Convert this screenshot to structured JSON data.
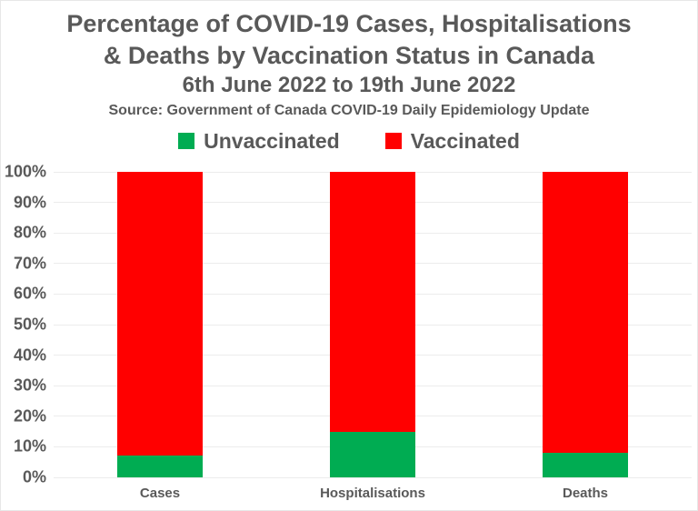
{
  "title": {
    "line1": "Percentage of COVID-19 Cases, Hospitalisations",
    "line2": "& Deaths by Vaccination Status in Canada",
    "subtitle": "6th June 2022 to 19th June 2022",
    "source": "Source: Government of Canada COVID-19 Daily Epidemiology Update"
  },
  "colors": {
    "text": "#595959",
    "gridline": "#ececec",
    "border": "#e7e7e7",
    "unvaccinated_green": "#00AC52",
    "vaccinated_red": "#FF0000",
    "background": "#ffffff"
  },
  "chart_data": {
    "type": "bar",
    "stacked": true,
    "orientation": "vertical",
    "categories": [
      "Cases",
      "Hospitalisations",
      "Deaths"
    ],
    "series": [
      {
        "name": "Unvaccinated",
        "color": "#00AC52",
        "values": [
          7,
          15,
          8
        ]
      },
      {
        "name": "Vaccinated",
        "color": "#FF0000",
        "values": [
          93,
          85,
          92
        ]
      }
    ],
    "title": "Percentage of COVID-19 Cases, Hospitalisations & Deaths by Vaccination Status in Canada",
    "subtitle": "6th June 2022 to 19th June 2022",
    "source": "Source: Government of Canada COVID-19 Daily Epidemiology Update",
    "xlabel": "",
    "ylabel": "",
    "ylim": [
      0,
      100
    ],
    "ytick_step": 10,
    "ytick_suffix": "%",
    "grid": true,
    "legend_position": "top"
  }
}
